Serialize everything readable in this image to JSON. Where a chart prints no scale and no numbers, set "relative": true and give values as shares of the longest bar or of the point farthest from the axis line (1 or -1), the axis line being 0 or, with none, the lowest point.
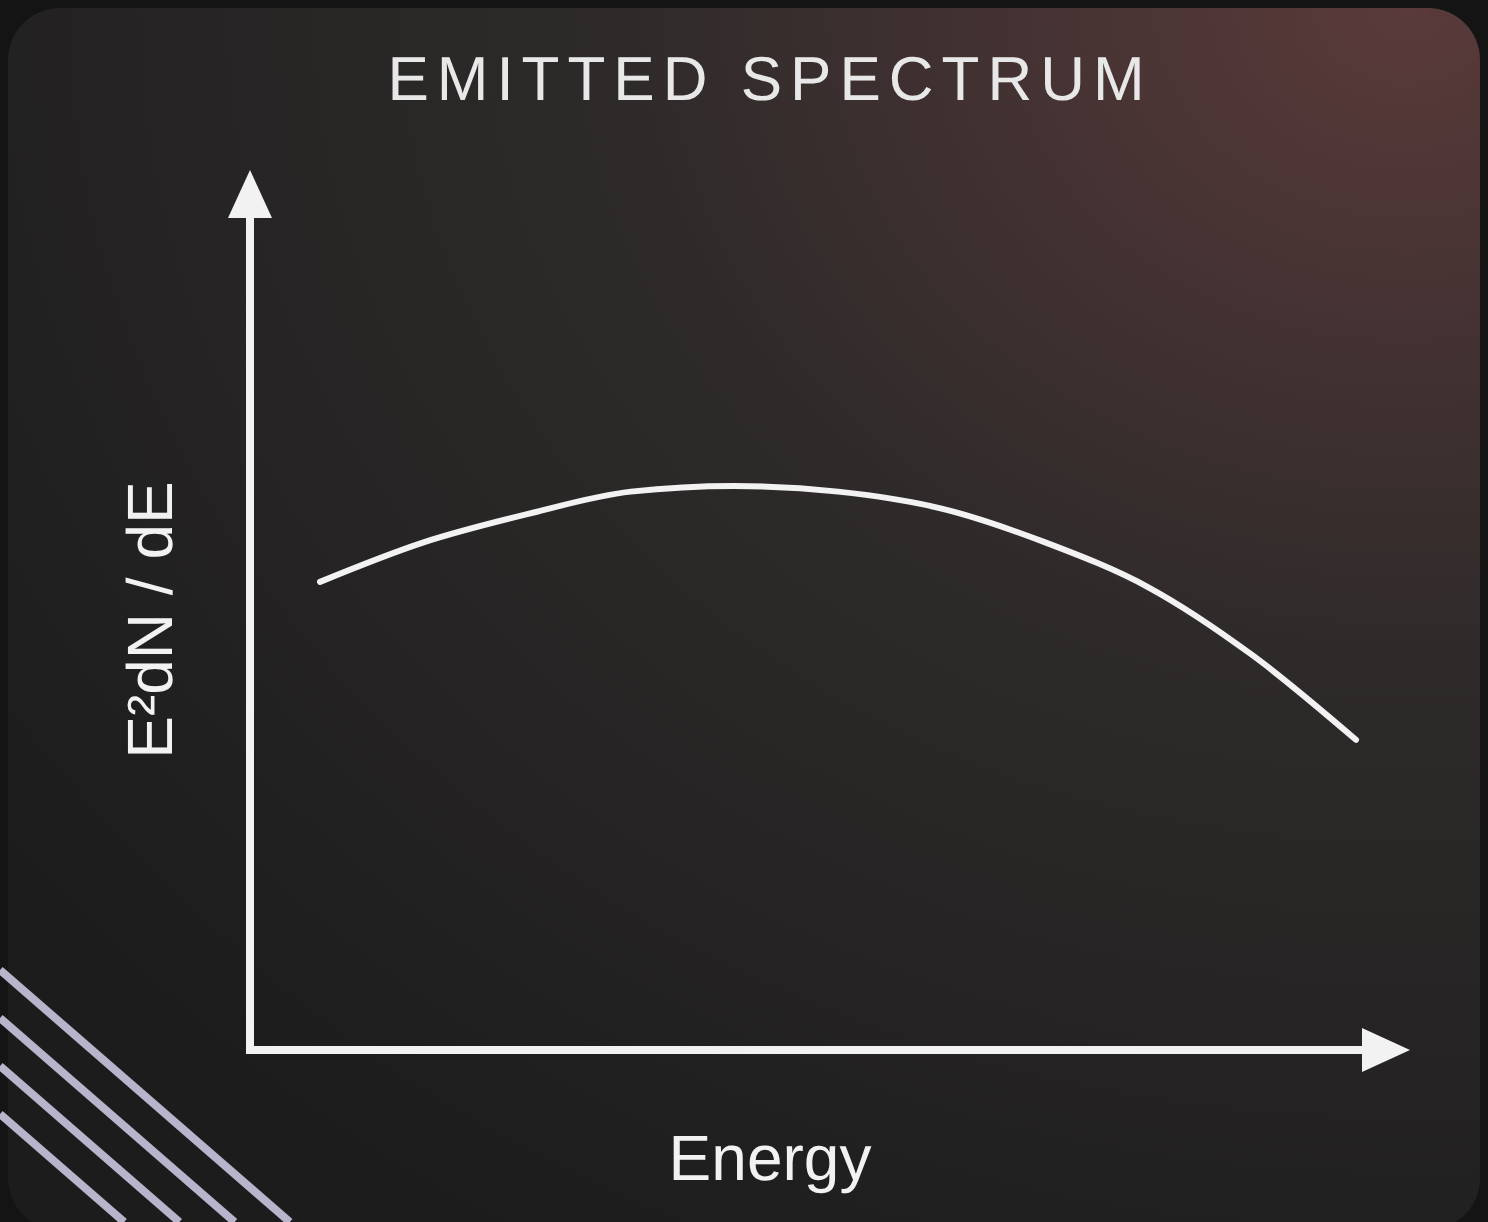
{
  "chart_data": {
    "type": "line",
    "title": "EMITTED SPECTRUM",
    "xlabel": "Energy",
    "ylabel": "E²dN / dE",
    "relative": true,
    "categories": [
      null,
      null,
      null,
      null,
      null,
      null,
      null,
      null,
      null,
      null,
      null
    ],
    "series": [
      {
        "color": "#f2f2f2",
        "values": [
          0.83,
          0.9,
          0.95,
          0.99,
          1.0,
          0.99,
          0.96,
          0.9,
          0.82,
          0.7,
          0.55
        ]
      }
    ],
    "marker": "none",
    "line_style": "solid"
  }
}
